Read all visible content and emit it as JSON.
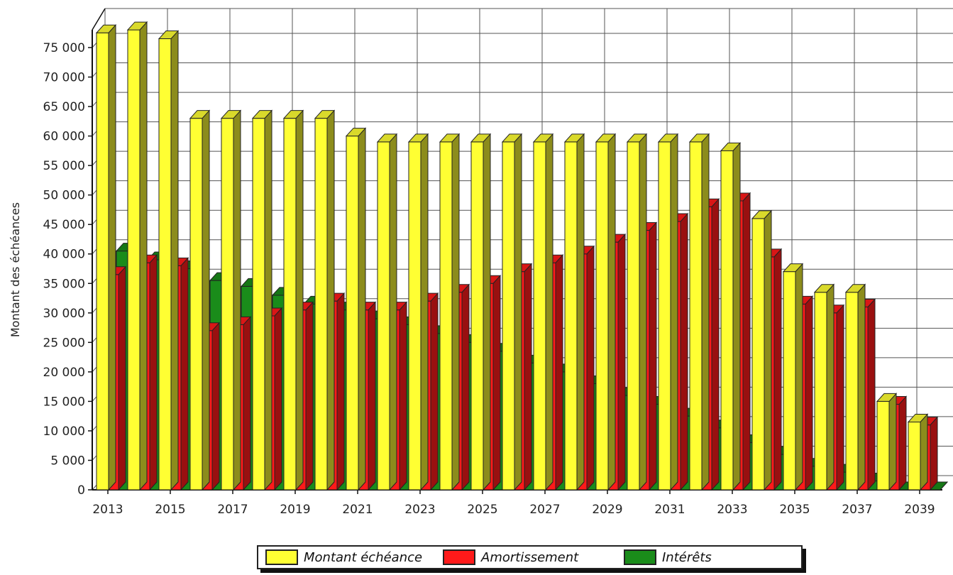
{
  "chart_data": {
    "type": "bar",
    "title": "",
    "xlabel": "",
    "ylabel": "Montant des échéances",
    "ylim": [
      0,
      80000
    ],
    "grid": true,
    "legend_position": "bottom",
    "y_ticks": [
      "0",
      "5 000",
      "10 000",
      "15 000",
      "20 000",
      "25 000",
      "30 000",
      "35 000",
      "40 000",
      "45 000",
      "50 000",
      "55 000",
      "60 000",
      "65 000",
      "70 000",
      "75 000"
    ],
    "x_tick_labels": [
      "2013",
      "2015",
      "2017",
      "2019",
      "2021",
      "2023",
      "2025",
      "2027",
      "2029",
      "2031",
      "2033",
      "2035",
      "2037",
      "2039"
    ],
    "categories": [
      "2013",
      "2014",
      "2015",
      "2016",
      "2017",
      "2018",
      "2019",
      "2020",
      "2021",
      "2022",
      "2023",
      "2024",
      "2025",
      "2026",
      "2027",
      "2028",
      "2029",
      "2030",
      "2031",
      "2032",
      "2033",
      "2034",
      "2035",
      "2036",
      "2037",
      "2038",
      "2039"
    ],
    "series": [
      {
        "name": "Montant échéance",
        "color": "#ffff33",
        "values": [
          77500,
          78000,
          76500,
          63000,
          63000,
          63000,
          63000,
          63000,
          60000,
          59000,
          59000,
          59000,
          59000,
          59000,
          59000,
          59000,
          59000,
          59000,
          59000,
          59000,
          57500,
          46000,
          37000,
          33500,
          33500,
          15000,
          11500
        ]
      },
      {
        "name": "Amortissement",
        "color": "#ff1a1a",
        "values": [
          36500,
          38500,
          38000,
          27000,
          28000,
          29500,
          30500,
          32000,
          30500,
          30500,
          32000,
          33500,
          35000,
          37000,
          38500,
          40000,
          42000,
          44000,
          45500,
          48000,
          49000,
          39500,
          31500,
          30000,
          31000,
          14500,
          11000
        ]
      },
      {
        "name": "Intérêts",
        "color": "#1a8c1a",
        "values": [
          40500,
          39000,
          37500,
          35500,
          34500,
          33000,
          31500,
          30500,
          29000,
          28000,
          26500,
          25000,
          23500,
          21500,
          20000,
          18000,
          16000,
          14500,
          12500,
          10500,
          8000,
          6000,
          4000,
          3000,
          1500,
          0,
          0
        ]
      }
    ]
  }
}
